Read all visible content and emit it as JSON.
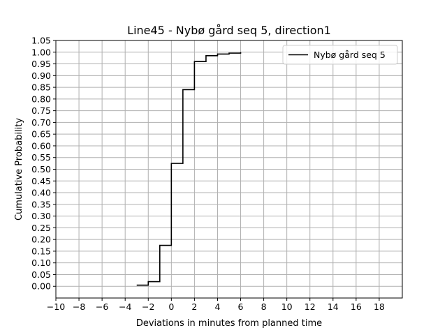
{
  "chart_data": {
    "type": "line",
    "title": "Line45 - Nybø gård seq 5, direction1",
    "xlabel": "Deviations in minutes from planned time",
    "ylabel": "Cumulative Probability",
    "xlim": [
      -10,
      20
    ],
    "ylim": [
      -0.05,
      1.05
    ],
    "x_ticks": [
      -10,
      -8,
      -6,
      -4,
      -2,
      0,
      2,
      4,
      6,
      8,
      10,
      12,
      14,
      16,
      18
    ],
    "x_tick_labels": [
      "−10",
      "−8",
      "−6",
      "−4",
      "−2",
      "0",
      "2",
      "4",
      "6",
      "8",
      "10",
      "12",
      "14",
      "16",
      "18"
    ],
    "y_ticks": [
      0.0,
      0.05,
      0.1,
      0.15,
      0.2,
      0.25,
      0.3,
      0.35,
      0.4,
      0.45,
      0.5,
      0.55,
      0.6,
      0.65,
      0.7,
      0.75,
      0.8,
      0.85,
      0.9,
      0.95,
      1.0,
      1.05
    ],
    "y_tick_labels": [
      "0.00",
      "0.05",
      "0.10",
      "0.15",
      "0.20",
      "0.25",
      "0.30",
      "0.35",
      "0.40",
      "0.45",
      "0.50",
      "0.55",
      "0.60",
      "0.65",
      "0.70",
      "0.75",
      "0.80",
      "0.85",
      "0.90",
      "0.95",
      "1.00",
      "1.05"
    ],
    "grid": true,
    "legend_position": "top-right",
    "step": "post",
    "series": [
      {
        "name": "Nybø gård seq 5",
        "color": "#000000",
        "x": [
          -3,
          -2,
          -1,
          0,
          1,
          2,
          3,
          4,
          5,
          6
        ],
        "y": [
          0.005,
          0.02,
          0.175,
          0.525,
          0.84,
          0.96,
          0.985,
          0.992,
          0.996,
          1.0
        ]
      }
    ]
  }
}
